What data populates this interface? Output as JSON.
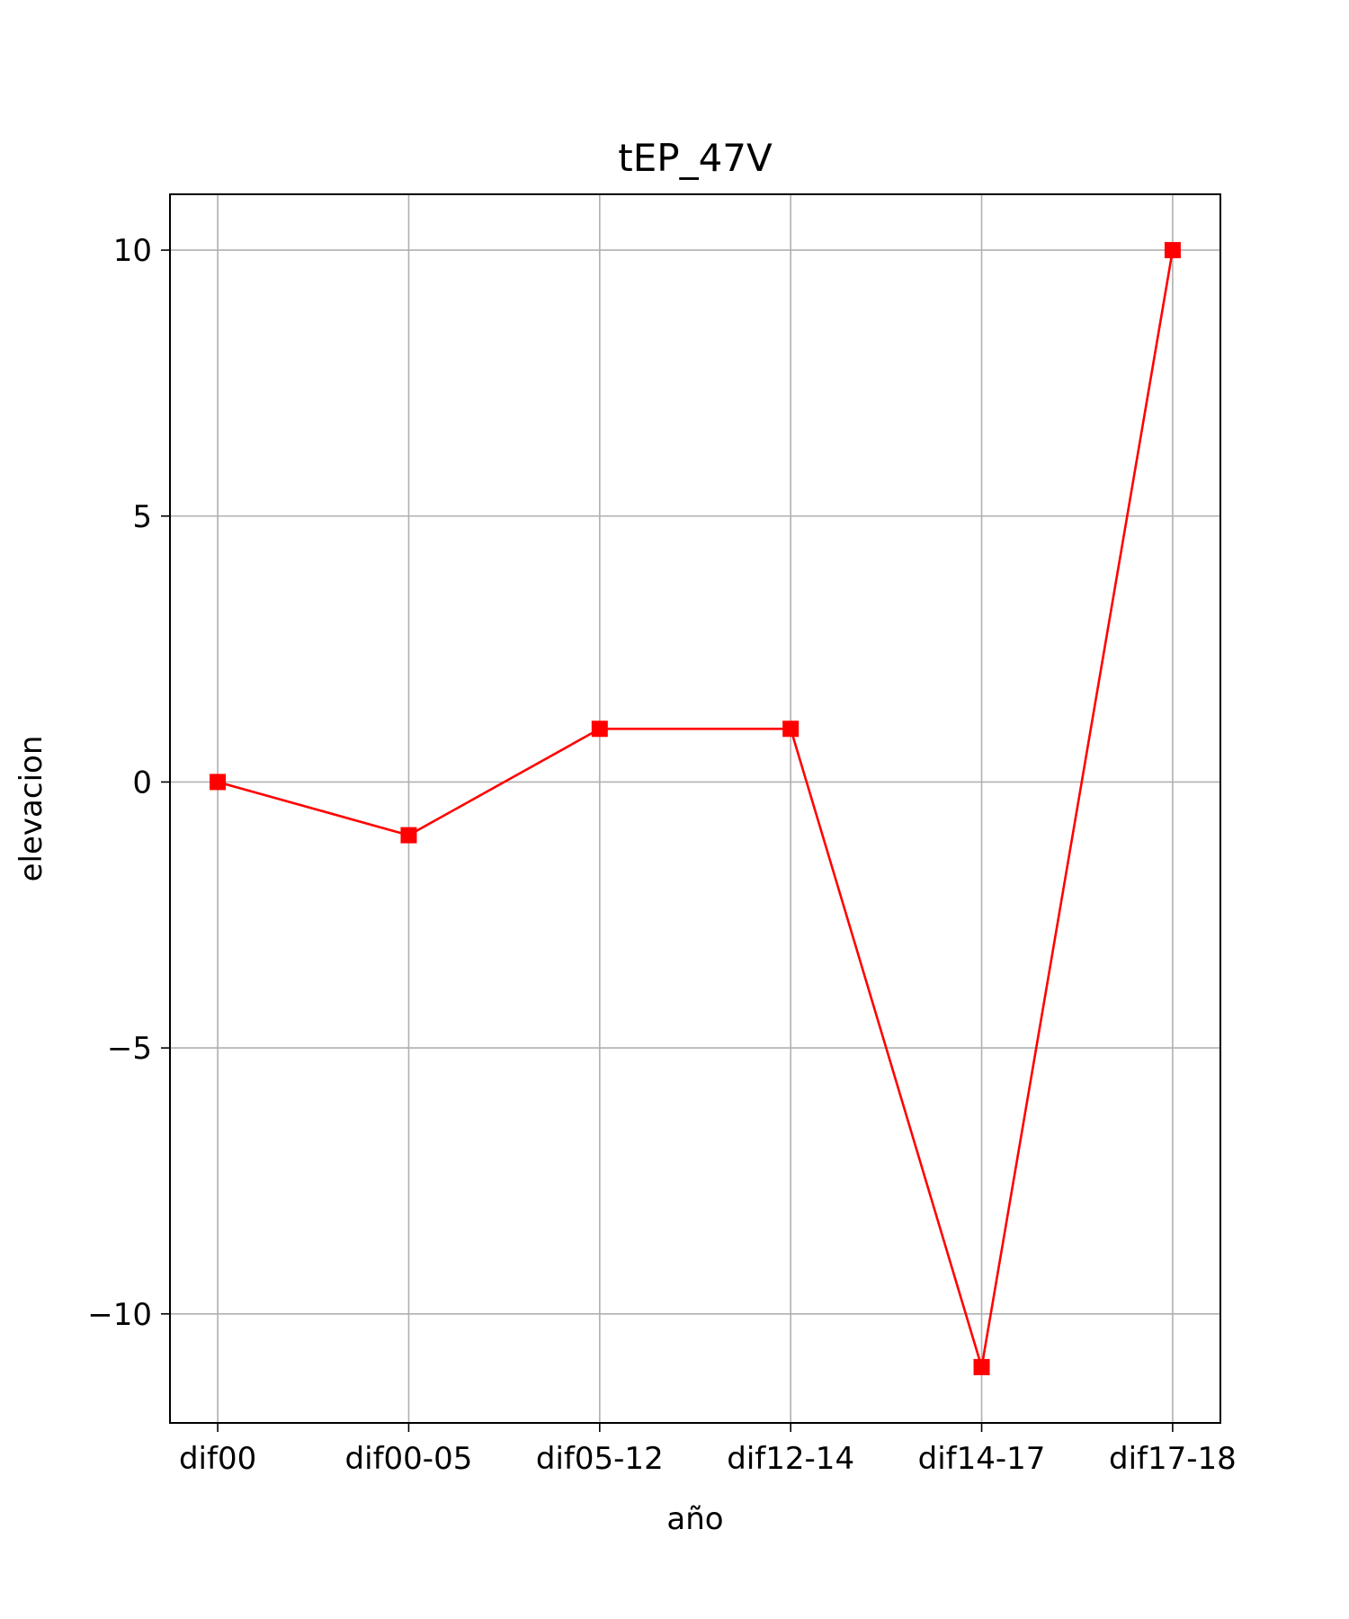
{
  "chart_data": {
    "type": "line",
    "title": "tEP_47V",
    "xlabel": "año",
    "ylabel": "elevacion",
    "categories": [
      "dif00",
      "dif00-05",
      "dif05-12",
      "dif12-14",
      "dif14-17",
      "dif17-18"
    ],
    "series": [
      {
        "values": [
          0,
          -1,
          1,
          1,
          -11,
          10
        ],
        "color": "#ff0000",
        "marker": "square"
      }
    ],
    "ylim": [
      -12.05,
      11.05
    ],
    "yticks": [
      -10,
      -5,
      0,
      5,
      10
    ],
    "ytick_labels": [
      "−10",
      "−5",
      "0",
      "5",
      "10"
    ],
    "grid": true
  }
}
